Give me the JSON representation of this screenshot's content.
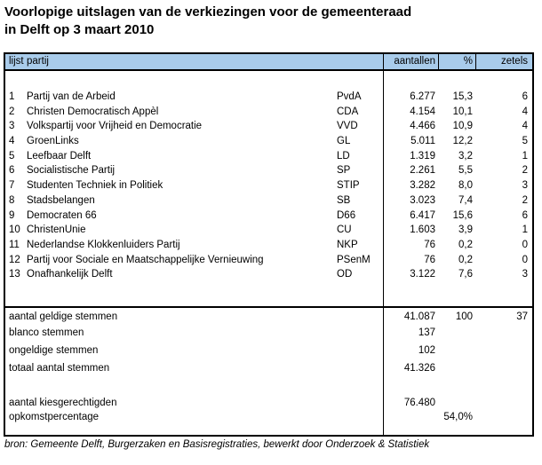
{
  "title": {
    "line1": "Voorlopige uitslagen van de verkiezingen voor de gemeenteraad",
    "line2": "in Delft op 3 maart 2010"
  },
  "table": {
    "header": {
      "lijst": "lijst",
      "partij": "partij",
      "aantallen": "aantallen",
      "pct": "%",
      "zetels": "zetels"
    },
    "parties": [
      {
        "lijst": "1",
        "partij": "Partij van de Arbeid",
        "afkorting": "PvdA",
        "aantallen": "6.277",
        "pct": "15,3",
        "zetels": "6"
      },
      {
        "lijst": "2",
        "partij": "Christen Democratisch Appèl",
        "afkorting": "CDA",
        "aantallen": "4.154",
        "pct": "10,1",
        "zetels": "4"
      },
      {
        "lijst": "3",
        "partij": "Volkspartij voor Vrijheid en Democratie",
        "afkorting": "VVD",
        "aantallen": "4.466",
        "pct": "10,9",
        "zetels": "4"
      },
      {
        "lijst": "4",
        "partij": "GroenLinks",
        "afkorting": "GL",
        "aantallen": "5.011",
        "pct": "12,2",
        "zetels": "5"
      },
      {
        "lijst": "5",
        "partij": "Leefbaar Delft",
        "afkorting": "LD",
        "aantallen": "1.319",
        "pct": "3,2",
        "zetels": "1"
      },
      {
        "lijst": "6",
        "partij": "Socialistische Partij",
        "afkorting": "SP",
        "aantallen": "2.261",
        "pct": "5,5",
        "zetels": "2"
      },
      {
        "lijst": "7",
        "partij": "Studenten Techniek in Politiek",
        "afkorting": "STIP",
        "aantallen": "3.282",
        "pct": "8,0",
        "zetels": "3"
      },
      {
        "lijst": "8",
        "partij": "Stadsbelangen",
        "afkorting": "SB",
        "aantallen": "3.023",
        "pct": "7,4",
        "zetels": "2"
      },
      {
        "lijst": "9",
        "partij": "Democraten 66",
        "afkorting": "D66",
        "aantallen": "6.417",
        "pct": "15,6",
        "zetels": "6"
      },
      {
        "lijst": "10",
        "partij": "ChristenUnie",
        "afkorting": "CU",
        "aantallen": "1.603",
        "pct": "3,9",
        "zetels": "1"
      },
      {
        "lijst": "11",
        "partij": "Nederlandse Klokkenluiders Partij",
        "afkorting": "NKP",
        "aantallen": "76",
        "pct": "0,2",
        "zetels": "0"
      },
      {
        "lijst": "12",
        "partij": "Partij voor Sociale en Maatschappelijke Vernieuwing",
        "afkorting": "PSenM",
        "aantallen": "76",
        "pct": "0,2",
        "zetels": "0"
      },
      {
        "lijst": "13",
        "partij": "Onafhankelijk Delft",
        "afkorting": "OD",
        "aantallen": "3.122",
        "pct": "7,6",
        "zetels": "3"
      }
    ],
    "totals": [
      {
        "label": "aantal geldige stemmen",
        "aantallen": "41.087",
        "pct": "100",
        "zetels": "37"
      },
      {
        "label": "blanco stemmen",
        "aantallen": "137",
        "pct": "",
        "zetels": ""
      },
      {
        "label": "ongeldige stemmen",
        "aantallen": "102",
        "pct": "",
        "zetels": ""
      },
      {
        "label": "totaal aantal stemmen",
        "aantallen": "41.326",
        "pct": "",
        "zetels": ""
      },
      {
        "label": "",
        "aantallen": "",
        "pct": "",
        "zetels": ""
      },
      {
        "label": "aantal kiesgerechtigden",
        "aantallen": "76.480",
        "pct": "",
        "zetels": ""
      },
      {
        "label": "opkomstpercentage",
        "aantallen": "",
        "pct": "54,0%",
        "zetels": ""
      }
    ]
  },
  "footer": {
    "source": "bron: Gemeente Delft, Burgerzaken en Basisregistraties, bewerkt door Onderzoek & Statistiek"
  },
  "colors": {
    "header_bg": "#A9CCEB",
    "border": "#000000",
    "text": "#000000",
    "background": "#FFFFFF"
  }
}
